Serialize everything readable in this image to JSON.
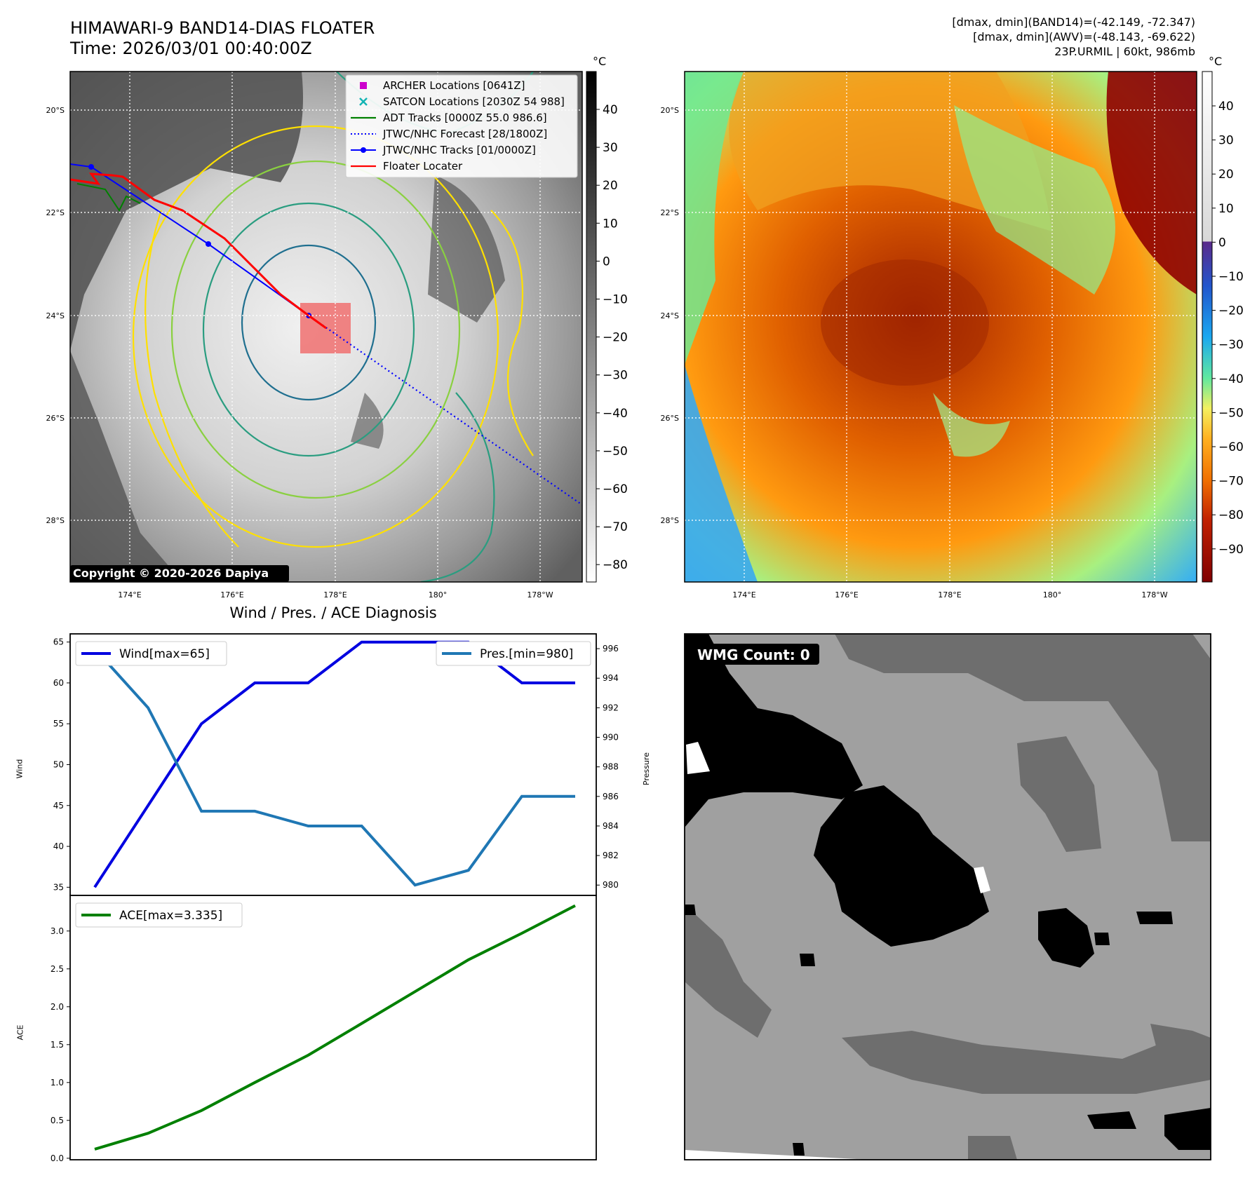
{
  "header": {
    "title_line1": "HIMAWARI-9 BAND14-DIAS FLOATER",
    "title_line2": "Time: 2026/03/01 00:40:00Z",
    "info_line1": "[dmax, dmin](BAND14)=(-42.149, -72.347)",
    "info_line2": "[dmax, dmin](AWV)=(-48.143, -69.622)",
    "info_line3": "23P.URMIL | 60kt, 986mb"
  },
  "maps": {
    "lat_labels": [
      "20°S",
      "22°S",
      "24°S",
      "26°S",
      "28°S"
    ],
    "lon_labels": [
      "174°E",
      "176°E",
      "178°E",
      "180°",
      "178°W"
    ],
    "copyright": "Copyright © 2020-2026 Dapiya",
    "colorbar_unit": "°C",
    "left_colorbar_ticks": [
      "40",
      "30",
      "20",
      "10",
      "0",
      "−10",
      "−20",
      "−30",
      "−40",
      "−50",
      "−60",
      "−70",
      "−80"
    ],
    "right_colorbar_ticks": [
      "40",
      "30",
      "20",
      "10",
      "0",
      "−10",
      "−20",
      "−30",
      "−40",
      "−50",
      "−60",
      "−70",
      "−80",
      "−90"
    ],
    "legend": [
      {
        "label": "ARCHER Locations [0641Z]",
        "color": "#cc00cc",
        "style": "square"
      },
      {
        "label": "SATCON Locations [2030Z 54 988]",
        "color": "#14b4b4",
        "style": "x"
      },
      {
        "label": "ADT Tracks [0000Z 55.0 986.6]",
        "color": "#008000",
        "style": "line"
      },
      {
        "label": "JTWC/NHC Forecast [28/1800Z]",
        "color": "#0000ff",
        "style": "dotted"
      },
      {
        "label": "JTWC/NHC Tracks [01/0000Z]",
        "color": "#0000ff",
        "style": "line-dot"
      },
      {
        "label": "Floater Locater",
        "color": "#ff0000",
        "style": "line"
      }
    ]
  },
  "chart_data": [
    {
      "type": "line",
      "title": "Wind / Pres. / ACE Diagnosis",
      "ylabel_left": "Wind",
      "ylabel_right": "Pressure",
      "ylim_left": [
        34,
        66
      ],
      "ylim_right": [
        979.3,
        997.0
      ],
      "yticks_left": [
        35,
        40,
        45,
        50,
        55,
        60,
        65
      ],
      "yticks_right": [
        980,
        982,
        984,
        986,
        988,
        990,
        992,
        994,
        996
      ],
      "x": [
        0,
        1,
        2,
        3,
        4,
        5,
        6,
        7,
        8,
        9
      ],
      "series": [
        {
          "name": "Wind[max=65]",
          "axis": "left",
          "color": "#0000e0",
          "values": [
            35,
            45,
            55,
            60,
            60,
            65,
            65,
            65,
            60,
            60
          ]
        },
        {
          "name": "Pres.[min=980]",
          "axis": "right",
          "color": "#1f77b4",
          "values": [
            996,
            992,
            985,
            985,
            984,
            984,
            980,
            981,
            986,
            986
          ]
        }
      ]
    },
    {
      "type": "line",
      "ylabel": "ACE",
      "ylim": [
        -0.02,
        3.47
      ],
      "yticks": [
        0.0,
        0.5,
        1.0,
        1.5,
        2.0,
        2.5,
        3.0
      ],
      "ytick_labels": [
        "0.0",
        "0.5",
        "1.0",
        "1.5",
        "2.0",
        "2.5",
        "3.0"
      ],
      "x": [
        0,
        1,
        2,
        3,
        4,
        5,
        6,
        7,
        8,
        9
      ],
      "series": [
        {
          "name": "ACE[max=3.335]",
          "color": "#008000",
          "values": [
            0.12,
            0.33,
            0.63,
            1.0,
            1.36,
            1.78,
            2.2,
            2.62,
            2.97,
            3.335
          ]
        }
      ]
    }
  ],
  "wmg": {
    "label": "WMG Count: 0"
  }
}
